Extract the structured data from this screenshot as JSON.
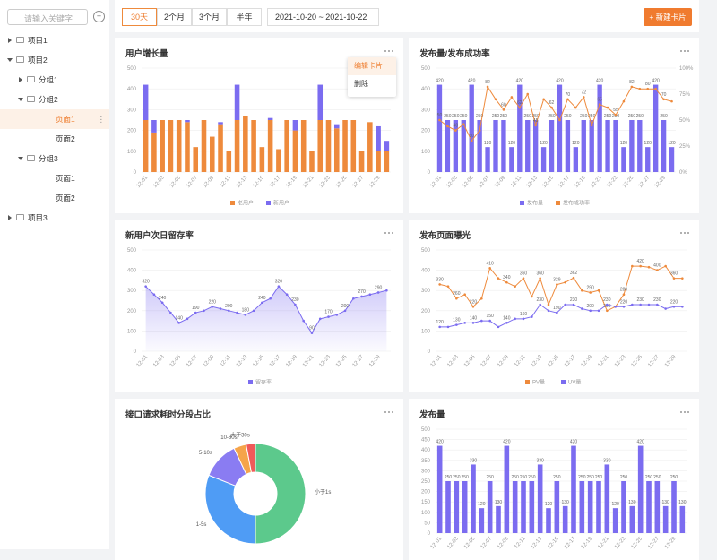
{
  "search_placeholder": "请输入关键字",
  "tree": [
    {
      "label": "项目1",
      "level": 0,
      "arrow": "closed"
    },
    {
      "label": "项目2",
      "level": 0,
      "arrow": "open"
    },
    {
      "label": "分组1",
      "level": 1,
      "arrow": "closed"
    },
    {
      "label": "分组2",
      "level": 1,
      "arrow": "open"
    },
    {
      "label": "页面1",
      "level": 2,
      "selected": true
    },
    {
      "label": "页面2",
      "level": 2
    },
    {
      "label": "分组3",
      "level": 1,
      "arrow": "open"
    },
    {
      "label": "页面1",
      "level": 2
    },
    {
      "label": "页面2",
      "level": 2
    },
    {
      "label": "项目3",
      "level": 0,
      "arrow": "closed"
    }
  ],
  "tabs": [
    "30天",
    "2个月",
    "3个月",
    "半年"
  ],
  "active_tab": 0,
  "date_range": "2021-10-20 ~ 2021-10-22",
  "new_button": "新建卡片",
  "menu": [
    "编辑卡片",
    "删除"
  ],
  "chart_data": [
    {
      "type": "stacked-bar",
      "title": "用户增长量",
      "categories": [
        "12-01",
        null,
        "12-03",
        null,
        "12-05",
        null,
        "12-07",
        null,
        "12-09",
        null,
        "12-11",
        null,
        "12-13",
        null,
        "12-15",
        null,
        "12-17",
        null,
        "12-19",
        null,
        "12-21",
        null,
        "12-23",
        null,
        "12-25",
        null,
        "12-27",
        null,
        "12-29",
        null
      ],
      "ylim": [
        0,
        500
      ],
      "yticks": [
        0,
        100,
        200,
        300,
        400,
        500
      ],
      "legend": "bottom",
      "series": [
        {
          "name": "老用户",
          "color": "#ee8a3c",
          "values": [
            250,
            190,
            250,
            250,
            250,
            240,
            120,
            250,
            170,
            230,
            100,
            250,
            270,
            250,
            120,
            250,
            110,
            250,
            200,
            250,
            100,
            250,
            250,
            210,
            250,
            250,
            100,
            240,
            100,
            100
          ]
        },
        {
          "name": "新用户",
          "color": "#7b6cf0",
          "values": [
            170,
            60,
            0,
            0,
            0,
            10,
            0,
            0,
            0,
            10,
            0,
            170,
            0,
            0,
            0,
            10,
            0,
            0,
            50,
            0,
            0,
            170,
            0,
            20,
            0,
            0,
            0,
            0,
            120,
            50
          ]
        }
      ]
    },
    {
      "type": "combo",
      "title": "发布量/发布成功率",
      "categories": [
        "12-01",
        null,
        "12-03",
        null,
        "12-05",
        null,
        "12-07",
        null,
        "12-09",
        null,
        "12-11",
        null,
        "12-13",
        null,
        "12-15",
        null,
        "12-17",
        null,
        "12-19",
        null,
        "12-21",
        null,
        "12-23",
        null,
        "12-25",
        null,
        "12-27",
        null,
        "12-29",
        null
      ],
      "ylim": [
        0,
        500
      ],
      "yticks": [
        0,
        100,
        200,
        300,
        400,
        500
      ],
      "y2lim": [
        0,
        100
      ],
      "y2ticks": [
        {
          "value": 0,
          "label": "0%"
        },
        {
          "value": 25,
          "label": "25%"
        },
        {
          "value": 50,
          "label": "50%"
        },
        {
          "value": 75,
          "label": "75%"
        },
        {
          "value": 100,
          "label": "100%"
        }
      ],
      "legend": "bottom",
      "series": [
        {
          "name": "发布量",
          "color": "#7b6cf0",
          "kind": "bar",
          "values": [
            420,
            250,
            250,
            250,
            420,
            250,
            120,
            250,
            250,
            120,
            420,
            250,
            250,
            120,
            250,
            420,
            250,
            120,
            250,
            250,
            420,
            250,
            250,
            120,
            250,
            250,
            120,
            420,
            250,
            120
          ]
        },
        {
          "name": "发布成功率",
          "color": "#ee8a3c",
          "kind": "line",
          "axis": "y2",
          "values": [
            50,
            44,
            40,
            46,
            30,
            40,
            82,
            70,
            60,
            72,
            62,
            75,
            45,
            70,
            62,
            50,
            70,
            62,
            72,
            45,
            65,
            62,
            55,
            68,
            82,
            80,
            80,
            80,
            70,
            68
          ]
        }
      ]
    },
    {
      "type": "area",
      "title": "新用户次日留存率",
      "categories": [
        "12-01",
        null,
        "12-03",
        null,
        "12-05",
        null,
        "12-07",
        null,
        "12-09",
        null,
        "12-11",
        null,
        "12-13",
        null,
        "12-15",
        null,
        "12-17",
        null,
        "12-19",
        null,
        "12-21",
        null,
        "12-23",
        null,
        "12-25",
        null,
        "12-27",
        null,
        "12-29",
        null
      ],
      "ylim": [
        0,
        500
      ],
      "yticks": [
        0,
        100,
        200,
        300,
        400,
        500
      ],
      "legend": "bottom",
      "series": [
        {
          "name": "留存率",
          "color": "#7b6cf0",
          "values": [
            320,
            280,
            240,
            190,
            140,
            160,
            190,
            200,
            220,
            210,
            200,
            190,
            180,
            200,
            240,
            260,
            320,
            280,
            230,
            150,
            90,
            160,
            170,
            180,
            200,
            260,
            270,
            280,
            290,
            300
          ]
        }
      ]
    },
    {
      "type": "line",
      "title": "发布页面曝光",
      "categories": [
        "12-01",
        null,
        "12-03",
        null,
        "12-05",
        null,
        "12-07",
        null,
        "12-09",
        null,
        "12-11",
        null,
        "12-13",
        null,
        "12-15",
        null,
        "12-17",
        null,
        "12-19",
        null,
        "12-21",
        null,
        "12-23",
        null,
        "12-25",
        null,
        "12-27",
        null,
        "12-29",
        null
      ],
      "ylim": [
        0,
        500
      ],
      "yticks": [
        0,
        100,
        200,
        300,
        400,
        500
      ],
      "legend": "bottom",
      "series": [
        {
          "name": "PV量",
          "color": "#ee8a3c",
          "values": [
            330,
            320,
            260,
            280,
            220,
            260,
            410,
            360,
            340,
            320,
            360,
            270,
            360,
            230,
            329,
            340,
            362,
            300,
            290,
            300,
            200,
            220,
            280,
            420,
            420,
            415,
            400,
            420,
            360,
            360
          ]
        },
        {
          "name": "UV量",
          "color": "#7b6cf0",
          "values": [
            120,
            120,
            130,
            140,
            140,
            150,
            150,
            120,
            140,
            160,
            160,
            170,
            230,
            200,
            190,
            230,
            230,
            210,
            200,
            200,
            230,
            220,
            220,
            230,
            230,
            230,
            230,
            210,
            220,
            220
          ]
        }
      ]
    },
    {
      "type": "pie",
      "title": "接口请求耗时分段占比",
      "categories": [
        "小于1s",
        "1-5s",
        "5-10s",
        "10-30s",
        "大于30s"
      ],
      "values": [
        50,
        31,
        12,
        4,
        3
      ],
      "colors": [
        "#5cc98c",
        "#4f9cf5",
        "#8a7cf2",
        "#f5a44a",
        "#f05a5a"
      ]
    },
    {
      "type": "bar",
      "title": "发布量",
      "categories": [
        "12-01",
        null,
        "12-03",
        null,
        "12-05",
        null,
        "12-07",
        null,
        "12-09",
        null,
        "12-11",
        null,
        "12-13",
        null,
        "12-15",
        null,
        "12-17",
        null,
        "12-19",
        null,
        "12-21",
        null,
        "12-23",
        null,
        "12-25",
        null,
        "12-27",
        null,
        "12-29",
        null
      ],
      "ylim": [
        0,
        500
      ],
      "yticks": [
        0,
        50,
        100,
        150,
        200,
        250,
        300,
        350,
        400,
        450,
        500
      ],
      "labels": true,
      "series": [
        {
          "name": "发布量",
          "color": "#7b6cf0",
          "values": [
            420,
            250,
            250,
            250,
            330,
            120,
            250,
            130,
            420,
            250,
            250,
            250,
            330,
            120,
            250,
            130,
            420,
            250,
            250,
            250,
            330,
            120,
            250,
            130,
            420,
            250,
            250,
            130,
            250,
            130
          ]
        }
      ]
    }
  ]
}
